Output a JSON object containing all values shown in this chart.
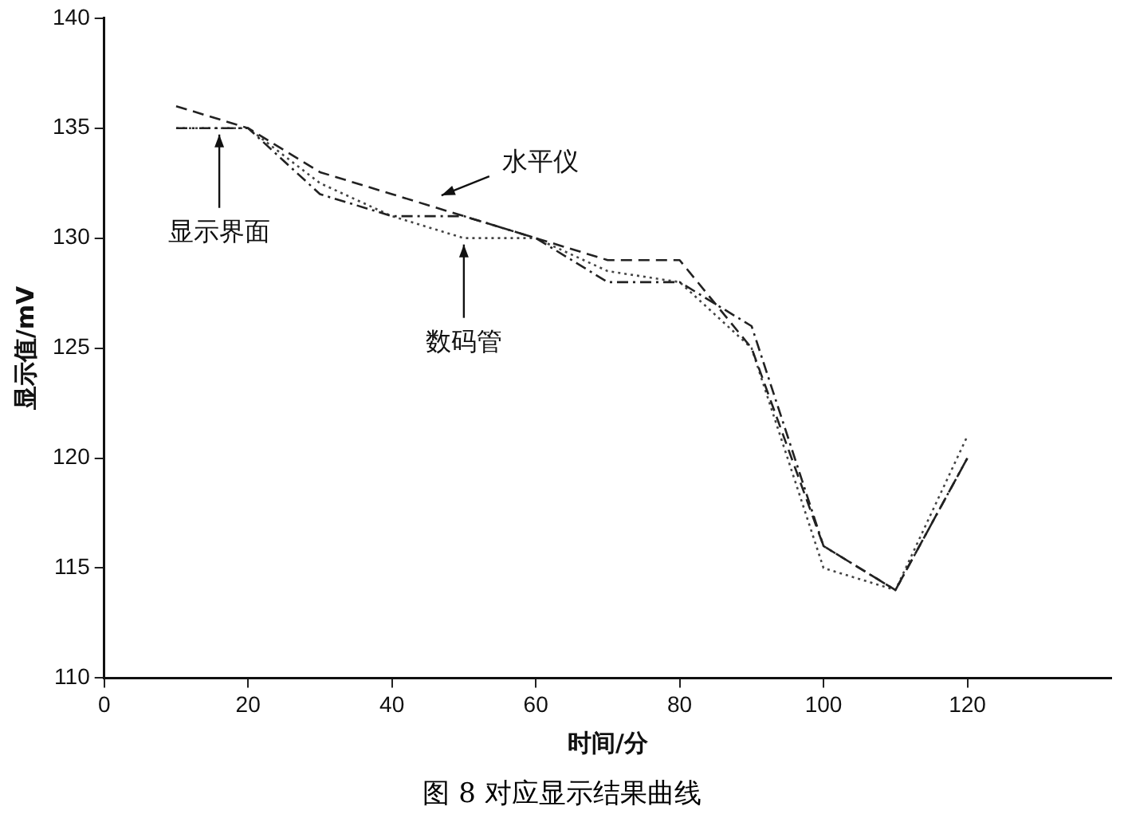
{
  "chart_data": {
    "type": "line",
    "xlabel": "时间/分",
    "ylabel": "显示值/mV",
    "x": [
      10,
      20,
      30,
      40,
      50,
      60,
      70,
      80,
      90,
      100,
      110,
      120
    ],
    "series": [
      {
        "color": "#222222",
        "line_style": "dashdot",
        "values": [
          135,
          135,
          132,
          131,
          131,
          130,
          128,
          128,
          126,
          116,
          114,
          120
        ]
      },
      {
        "color": "#222222",
        "line_style": "dashed",
        "values": [
          136,
          135,
          133,
          132,
          131,
          130,
          129,
          129,
          125,
          116,
          114,
          120
        ]
      },
      {
        "color": "#444444",
        "line_style": "dotted",
        "values": [
          135,
          135,
          132.5,
          131,
          130,
          130,
          128.5,
          128,
          125,
          115,
          114,
          121
        ]
      }
    ],
    "xlim": [
      0,
      140
    ],
    "xticks": [
      0,
      20,
      40,
      60,
      80,
      100,
      120
    ],
    "ylim": [
      110,
      140
    ],
    "yticks": [
      110,
      115,
      120,
      125,
      130,
      135,
      140
    ],
    "grid": false,
    "legend": false,
    "marker": "none",
    "annotations": [
      {
        "text": "显示界面",
        "x": 16,
        "y": 135
      },
      {
        "text": "水平仪",
        "x": 46,
        "y": 131.8
      },
      {
        "text": "数码管",
        "x": 50,
        "y": 130
      },
      "图 8 对应显示结果曲线"
    ]
  }
}
